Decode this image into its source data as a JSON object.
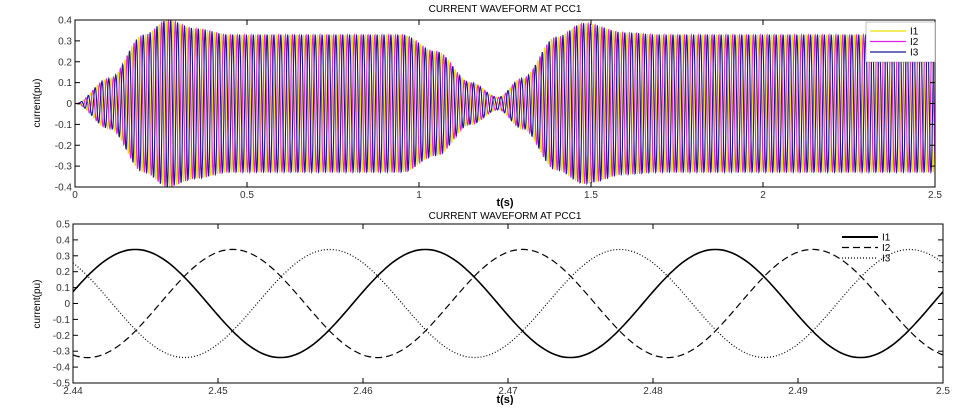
{
  "chart_data": [
    {
      "type": "line",
      "title": "CURRENT WAVEFORM AT PCC1",
      "xlabel": "t(s)",
      "ylabel": "current(pu)",
      "xlim": [
        0,
        2.5
      ],
      "ylim": [
        -0.4,
        0.4
      ],
      "xticks": [
        "0",
        "0.5",
        "1",
        "1.5",
        "2",
        "2.5"
      ],
      "xtick_values": [
        0,
        0.5,
        1,
        1.5,
        2,
        2.5
      ],
      "yticks": [
        "0.4",
        "0.3",
        "0.2",
        "0.1",
        "0",
        "-0.1",
        "-0.2",
        "-0.3",
        "-0.4"
      ],
      "ytick_values": [
        0.4,
        0.3,
        0.2,
        0.1,
        0,
        -0.1,
        -0.2,
        -0.3,
        -0.4
      ],
      "frequency_hz": 50,
      "envelope": [
        [
          0,
          0
        ],
        [
          0.1,
          0.12
        ],
        [
          0.2,
          0.33
        ],
        [
          0.27,
          0.4
        ],
        [
          0.35,
          0.36
        ],
        [
          0.45,
          0.33
        ],
        [
          0.95,
          0.33
        ],
        [
          1.05,
          0.25
        ],
        [
          1.15,
          0.1
        ],
        [
          1.23,
          0.03
        ],
        [
          1.3,
          0.12
        ],
        [
          1.4,
          0.32
        ],
        [
          1.48,
          0.385
        ],
        [
          1.6,
          0.34
        ],
        [
          1.7,
          0.33
        ],
        [
          2.5,
          0.33
        ]
      ],
      "series": [
        {
          "name": "I1",
          "phase_deg": 0,
          "color": "#f0e000"
        },
        {
          "name": "I2",
          "phase_deg": -120,
          "color": "#e020e0"
        },
        {
          "name": "I3",
          "phase_deg": 120,
          "color": "#1a1a90"
        }
      ],
      "legend": "top-right",
      "grid": false
    },
    {
      "type": "line",
      "title": "CURRENT WAVEFORM AT PCC1",
      "xlabel": "t(s)",
      "ylabel": "current(pu)",
      "xlim": [
        2.44,
        2.5
      ],
      "ylim": [
        -0.5,
        0.5
      ],
      "xticks": [
        "2.44",
        "2.45",
        "2.46",
        "2.47",
        "2.48",
        "2.49",
        "2.5"
      ],
      "xtick_values": [
        2.44,
        2.45,
        2.46,
        2.47,
        2.48,
        2.49,
        2.5
      ],
      "yticks": [
        "0.5",
        "0.4",
        "0.3",
        "0.2",
        "0.1",
        "0",
        "-0.1",
        "-0.2",
        "-0.3",
        "-0.4",
        "-0.5"
      ],
      "ytick_values": [
        0.5,
        0.4,
        0.3,
        0.2,
        0.1,
        0,
        -0.1,
        -0.2,
        -0.3,
        -0.4,
        -0.5
      ],
      "frequency_hz": 50,
      "amplitude": 0.34,
      "series": [
        {
          "name": "I1",
          "peak_time": 2.4443,
          "style": "solid",
          "color": "#000000"
        },
        {
          "name": "I2",
          "peak_time": 2.451,
          "style": "dashed",
          "color": "#000000"
        },
        {
          "name": "I3",
          "peak_time": 2.4577,
          "style": "dotted",
          "color": "#000000"
        }
      ],
      "legend": "top-right",
      "grid": false
    }
  ]
}
